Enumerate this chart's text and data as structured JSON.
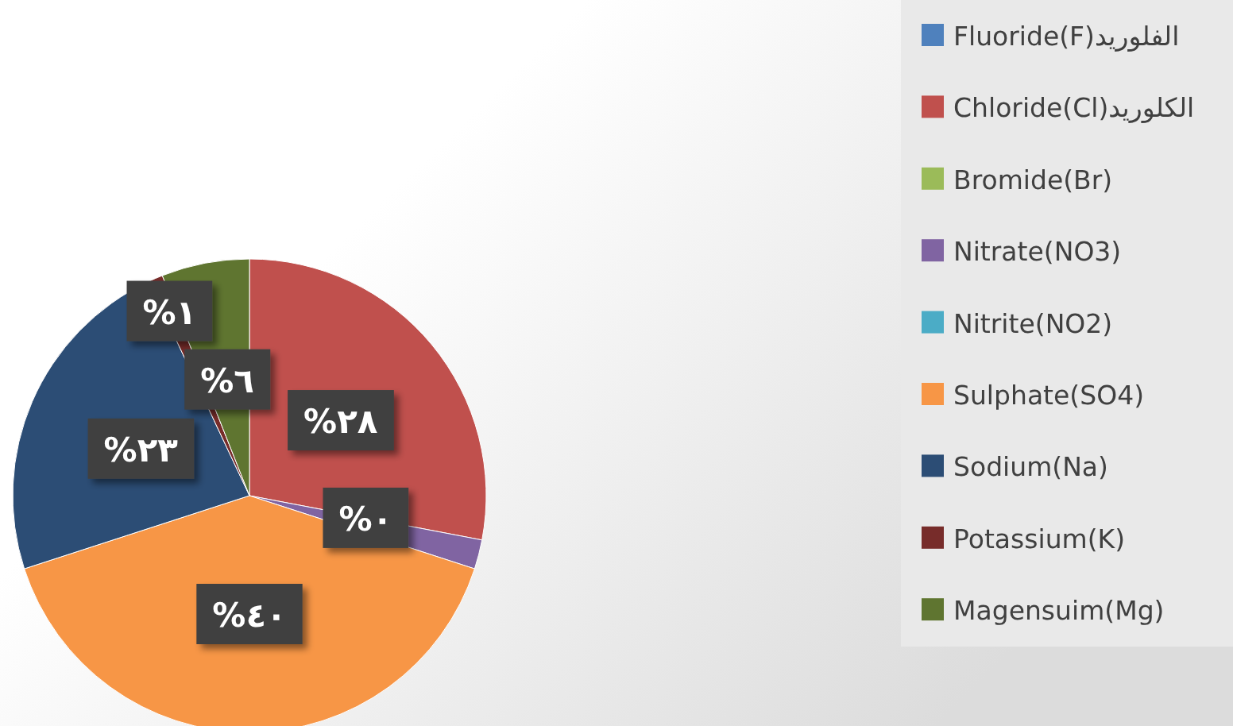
{
  "chart_data": {
    "type": "pie",
    "categories": [
      "Fluoride(F)الفلوريد",
      "Chloride(Cl)الكلوريد",
      "Bromide(Br)",
      "Nitrate(NO3)",
      "Nitrite(NO2)",
      "Sulphate(SO4)",
      "Sodium(Na)",
      "Potassium(K)",
      "Magensuim(Mg)"
    ],
    "values": [
      0,
      28,
      0,
      2,
      0,
      40,
      23,
      1,
      6
    ],
    "colors": [
      "#4f81bd",
      "#c0504d",
      "#9bbb59",
      "#8064a2",
      "#4bacc6",
      "#f79646",
      "#2c4d75",
      "#772c2a",
      "#5f7530"
    ],
    "value_labels": [
      null,
      "%٢٨",
      "%٠",
      null,
      null,
      "%٤٠",
      "%٢٣",
      "%١",
      "%٦"
    ],
    "legend": "right"
  }
}
